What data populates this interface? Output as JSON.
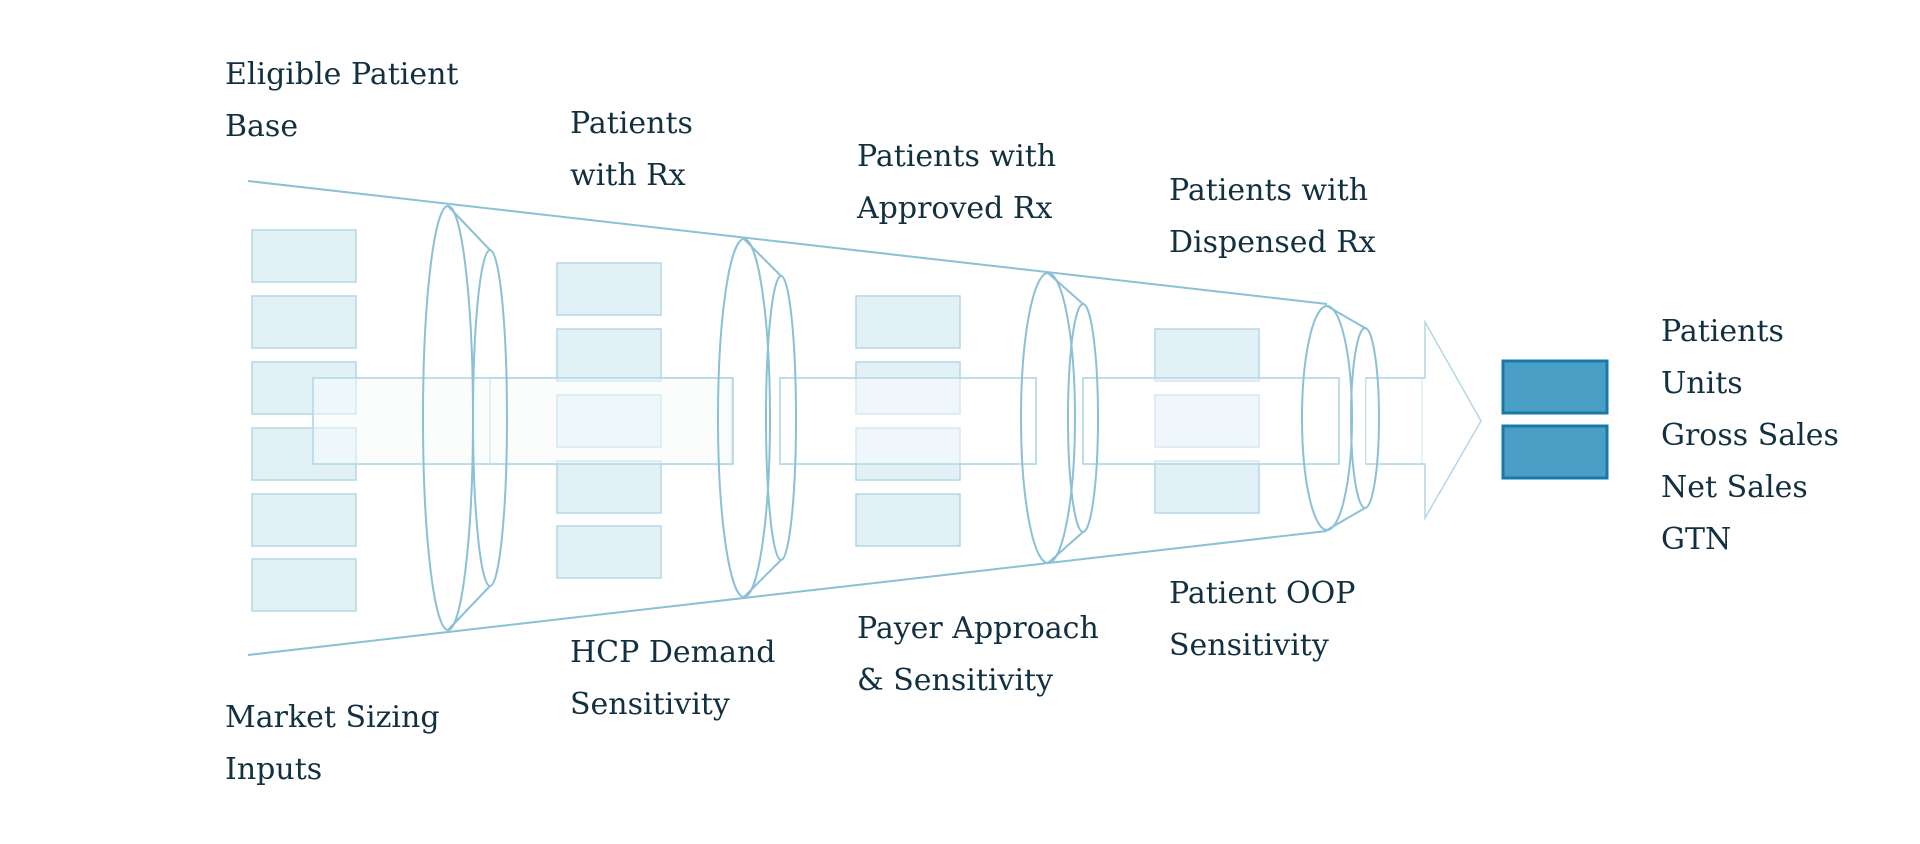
{
  "title": "",
  "colors": {
    "outline": "#8cc0d6",
    "box_fill": "#ddeef5",
    "box_stroke": "#b3d7e6",
    "pipe_fill": "#f4f9fb",
    "output_fill": "#4a9fc7",
    "output_stroke": "#1978a9",
    "text": "#12303f"
  },
  "stage_labels": [
    {
      "lines": [
        "Eligible Patient",
        "Base"
      ]
    },
    {
      "lines": [
        "Patients",
        "with Rx"
      ]
    },
    {
      "lines": [
        "Patients with",
        "Approved Rx"
      ]
    },
    {
      "lines": [
        "Patients with",
        "Dispensed Rx"
      ]
    }
  ],
  "driver_labels": [
    {
      "lines": [
        "Market Sizing",
        "Inputs"
      ]
    },
    {
      "lines": [
        "HCP Demand",
        "Sensitivity"
      ]
    },
    {
      "lines": [
        "Payer Approach",
        "& Sensitivity"
      ]
    },
    {
      "lines": [
        "Patient OOP",
        "Sensitivity"
      ]
    }
  ],
  "stage_box_counts": [
    6,
    5,
    4,
    3
  ],
  "output_box_count": 2,
  "outputs": [
    "Patients",
    "Units",
    "Gross Sales",
    "Net Sales",
    "GTN"
  ]
}
